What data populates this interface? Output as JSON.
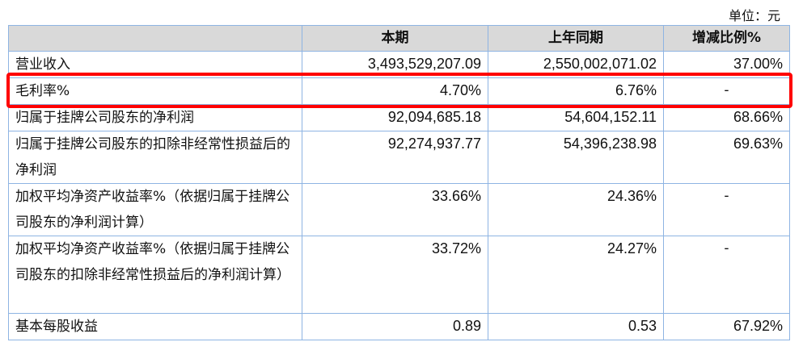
{
  "unit_label": "单位：元",
  "table": {
    "headers": [
      "",
      "本期",
      "上年同期",
      "增减比例%"
    ],
    "rows": [
      {
        "label": "营业收入",
        "current": "3,493,529,207.09",
        "previous": "2,550,002,071.02",
        "change": "37.00%"
      },
      {
        "label": "毛利率%",
        "current": "4.70%",
        "previous": "6.76%",
        "change": "-"
      },
      {
        "label": "归属于挂牌公司股东的净利润",
        "current": "92,094,685.18",
        "previous": "54,604,152.11",
        "change": "68.66%"
      },
      {
        "label": "归属于挂牌公司股东的扣除非经常性损益后的净利润",
        "current": "92,274,937.77",
        "previous": "54,396,238.98",
        "change": "69.63%"
      },
      {
        "label": "加权平均净资产收益率%（依据归属于挂牌公司股东的净利润计算）",
        "current": "33.66%",
        "previous": "24.36%",
        "change": "-"
      },
      {
        "label": "加权平均净资产收益率%（依据归属于挂牌公司股东的扣除非经常性损益后的净利润计算）",
        "current": "33.72%",
        "previous": "24.27%",
        "change": "-"
      },
      {
        "label": "基本每股收益",
        "current": "0.89",
        "previous": "0.53",
        "change": "67.92%"
      }
    ]
  },
  "highlight": {
    "row_index": 1,
    "color": "#ff0000"
  },
  "colors": {
    "header_bg": "#d9d9d9",
    "border": "#8eb4e3"
  }
}
